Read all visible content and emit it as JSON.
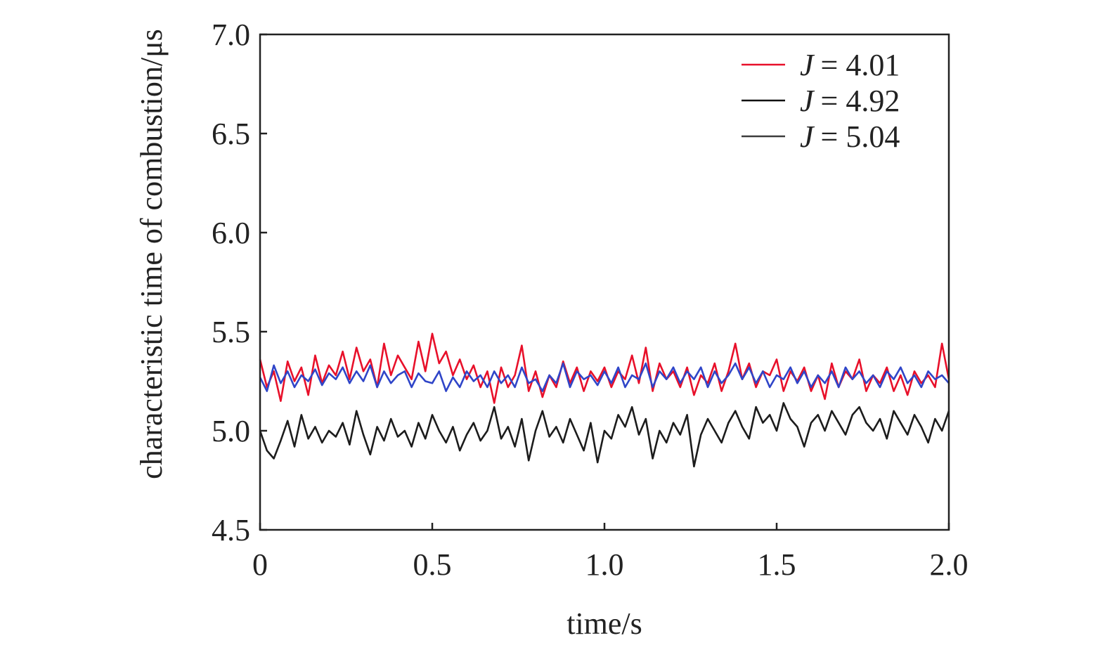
{
  "chart_data": {
    "type": "line",
    "title": "",
    "xlabel": "time/s",
    "ylabel": "characteristic time of combustion/μs",
    "xlim": [
      0,
      2.0
    ],
    "ylim": [
      4.5,
      7.0
    ],
    "xticks": [
      {
        "value": 0,
        "label": "0"
      },
      {
        "value": 0.5,
        "label": "0.5"
      },
      {
        "value": 1.0,
        "label": "1.0"
      },
      {
        "value": 1.5,
        "label": "1.5"
      },
      {
        "value": 2.0,
        "label": "2.0"
      }
    ],
    "yticks": [
      {
        "value": 4.5,
        "label": "4.5"
      },
      {
        "value": 5.0,
        "label": "5.0"
      },
      {
        "value": 5.5,
        "label": "5.5"
      },
      {
        "value": 6.0,
        "label": "6.0"
      },
      {
        "value": 6.5,
        "label": "6.5"
      },
      {
        "value": 7.0,
        "label": "7.0"
      }
    ],
    "grid": false,
    "legend_position": "top-right",
    "series": [
      {
        "name": "J = 4.01",
        "legend_symbol": "J",
        "legend_value": "= 4.01",
        "color": "#e8102a",
        "legend_color": "#e8102a",
        "x": [
          0.0,
          0.02,
          0.04,
          0.06,
          0.08,
          0.1,
          0.12,
          0.14,
          0.16,
          0.18,
          0.2,
          0.22,
          0.24,
          0.26,
          0.28,
          0.3,
          0.32,
          0.34,
          0.36,
          0.38,
          0.4,
          0.42,
          0.44,
          0.46,
          0.48,
          0.5,
          0.52,
          0.54,
          0.56,
          0.58,
          0.6,
          0.62,
          0.64,
          0.66,
          0.68,
          0.7,
          0.72,
          0.74,
          0.76,
          0.78,
          0.8,
          0.82,
          0.84,
          0.86,
          0.88,
          0.9,
          0.92,
          0.94,
          0.96,
          0.98,
          1.0,
          1.02,
          1.04,
          1.06,
          1.08,
          1.1,
          1.12,
          1.14,
          1.16,
          1.18,
          1.2,
          1.22,
          1.24,
          1.26,
          1.28,
          1.3,
          1.32,
          1.34,
          1.36,
          1.38,
          1.4,
          1.42,
          1.44,
          1.46,
          1.48,
          1.5,
          1.52,
          1.54,
          1.56,
          1.58,
          1.6,
          1.62,
          1.64,
          1.66,
          1.68,
          1.7,
          1.72,
          1.74,
          1.76,
          1.78,
          1.8,
          1.82,
          1.84,
          1.86,
          1.88,
          1.9,
          1.92,
          1.94,
          1.96,
          1.98,
          2.0
        ],
        "y": [
          5.36,
          5.22,
          5.3,
          5.15,
          5.35,
          5.25,
          5.32,
          5.18,
          5.38,
          5.24,
          5.33,
          5.28,
          5.4,
          5.26,
          5.42,
          5.3,
          5.36,
          5.22,
          5.44,
          5.28,
          5.38,
          5.32,
          5.26,
          5.45,
          5.3,
          5.49,
          5.34,
          5.4,
          5.28,
          5.36,
          5.26,
          5.33,
          5.22,
          5.3,
          5.14,
          5.32,
          5.22,
          5.28,
          5.43,
          5.2,
          5.3,
          5.17,
          5.28,
          5.22,
          5.35,
          5.24,
          5.32,
          5.2,
          5.3,
          5.25,
          5.32,
          5.22,
          5.3,
          5.26,
          5.38,
          5.24,
          5.42,
          5.2,
          5.34,
          5.26,
          5.3,
          5.22,
          5.32,
          5.18,
          5.28,
          5.24,
          5.34,
          5.2,
          5.3,
          5.44,
          5.26,
          5.34,
          5.22,
          5.3,
          5.28,
          5.36,
          5.2,
          5.3,
          5.25,
          5.32,
          5.2,
          5.28,
          5.16,
          5.34,
          5.22,
          5.3,
          5.26,
          5.36,
          5.2,
          5.28,
          5.24,
          5.32,
          5.2,
          5.28,
          5.18,
          5.3,
          5.24,
          5.28,
          5.22,
          5.44,
          5.26
        ]
      },
      {
        "name": "J = 4.92",
        "legend_symbol": "J",
        "legend_value": "= 4.92",
        "color": "#1c1c1c",
        "legend_color": "#111111",
        "x": [
          0.0,
          0.02,
          0.04,
          0.06,
          0.08,
          0.1,
          0.12,
          0.14,
          0.16,
          0.18,
          0.2,
          0.22,
          0.24,
          0.26,
          0.28,
          0.3,
          0.32,
          0.34,
          0.36,
          0.38,
          0.4,
          0.42,
          0.44,
          0.46,
          0.48,
          0.5,
          0.52,
          0.54,
          0.56,
          0.58,
          0.6,
          0.62,
          0.64,
          0.66,
          0.68,
          0.7,
          0.72,
          0.74,
          0.76,
          0.78,
          0.8,
          0.82,
          0.84,
          0.86,
          0.88,
          0.9,
          0.92,
          0.94,
          0.96,
          0.98,
          1.0,
          1.02,
          1.04,
          1.06,
          1.08,
          1.1,
          1.12,
          1.14,
          1.16,
          1.18,
          1.2,
          1.22,
          1.24,
          1.26,
          1.28,
          1.3,
          1.32,
          1.34,
          1.36,
          1.38,
          1.4,
          1.42,
          1.44,
          1.46,
          1.48,
          1.5,
          1.52,
          1.54,
          1.56,
          1.58,
          1.6,
          1.62,
          1.64,
          1.66,
          1.68,
          1.7,
          1.72,
          1.74,
          1.76,
          1.78,
          1.8,
          1.82,
          1.84,
          1.86,
          1.88,
          1.9,
          1.92,
          1.94,
          1.96,
          1.98,
          2.0
        ],
        "y": [
          5.0,
          4.9,
          4.86,
          4.95,
          5.05,
          4.92,
          5.08,
          4.96,
          5.02,
          4.94,
          5.0,
          4.97,
          5.04,
          4.93,
          5.1,
          4.98,
          4.88,
          5.02,
          4.95,
          5.06,
          4.97,
          5.0,
          4.92,
          5.04,
          4.96,
          5.08,
          5.0,
          4.94,
          5.02,
          4.9,
          4.98,
          5.04,
          4.95,
          5.0,
          5.12,
          4.96,
          5.02,
          4.92,
          5.06,
          4.85,
          5.0,
          5.1,
          4.97,
          5.02,
          4.94,
          5.06,
          4.98,
          4.9,
          5.04,
          4.84,
          5.0,
          4.96,
          5.08,
          5.02,
          5.12,
          4.98,
          5.06,
          4.86,
          5.0,
          4.94,
          5.04,
          4.98,
          5.08,
          4.82,
          4.98,
          5.06,
          5.0,
          4.94,
          5.04,
          5.1,
          5.02,
          4.96,
          5.12,
          5.04,
          5.08,
          5.0,
          5.14,
          5.06,
          5.02,
          4.92,
          5.04,
          5.08,
          5.0,
          5.1,
          5.04,
          4.98,
          5.08,
          5.12,
          5.04,
          5.0,
          5.06,
          4.96,
          5.1,
          5.04,
          4.98,
          5.08,
          5.02,
          4.94,
          5.06,
          5.0,
          5.1
        ]
      },
      {
        "name": "J = 5.04",
        "legend_symbol": "J",
        "legend_value": "= 5.04",
        "color": "#2f45c8",
        "legend_color": "#3c3c3c",
        "x": [
          0.0,
          0.02,
          0.04,
          0.06,
          0.08,
          0.1,
          0.12,
          0.14,
          0.16,
          0.18,
          0.2,
          0.22,
          0.24,
          0.26,
          0.28,
          0.3,
          0.32,
          0.34,
          0.36,
          0.38,
          0.4,
          0.42,
          0.44,
          0.46,
          0.48,
          0.5,
          0.52,
          0.54,
          0.56,
          0.58,
          0.6,
          0.62,
          0.64,
          0.66,
          0.68,
          0.7,
          0.72,
          0.74,
          0.76,
          0.78,
          0.8,
          0.82,
          0.84,
          0.86,
          0.88,
          0.9,
          0.92,
          0.94,
          0.96,
          0.98,
          1.0,
          1.02,
          1.04,
          1.06,
          1.08,
          1.1,
          1.12,
          1.14,
          1.16,
          1.18,
          1.2,
          1.22,
          1.24,
          1.26,
          1.28,
          1.3,
          1.32,
          1.34,
          1.36,
          1.38,
          1.4,
          1.42,
          1.44,
          1.46,
          1.48,
          1.5,
          1.52,
          1.54,
          1.56,
          1.58,
          1.6,
          1.62,
          1.64,
          1.66,
          1.68,
          1.7,
          1.72,
          1.74,
          1.76,
          1.78,
          1.8,
          1.82,
          1.84,
          1.86,
          1.88,
          1.9,
          1.92,
          1.94,
          1.96,
          1.98,
          2.0
        ],
        "y": [
          5.27,
          5.2,
          5.33,
          5.24,
          5.3,
          5.22,
          5.28,
          5.25,
          5.31,
          5.23,
          5.29,
          5.26,
          5.32,
          5.24,
          5.3,
          5.25,
          5.33,
          5.22,
          5.3,
          5.24,
          5.28,
          5.3,
          5.22,
          5.29,
          5.25,
          5.24,
          5.3,
          5.2,
          5.27,
          5.22,
          5.3,
          5.25,
          5.28,
          5.22,
          5.3,
          5.24,
          5.28,
          5.22,
          5.32,
          5.24,
          5.26,
          5.2,
          5.28,
          5.24,
          5.34,
          5.22,
          5.3,
          5.26,
          5.28,
          5.23,
          5.3,
          5.24,
          5.32,
          5.22,
          5.28,
          5.26,
          5.34,
          5.22,
          5.3,
          5.26,
          5.32,
          5.24,
          5.3,
          5.26,
          5.32,
          5.22,
          5.3,
          5.24,
          5.28,
          5.34,
          5.26,
          5.32,
          5.24,
          5.3,
          5.22,
          5.28,
          5.26,
          5.32,
          5.24,
          5.3,
          5.22,
          5.28,
          5.24,
          5.3,
          5.22,
          5.32,
          5.26,
          5.3,
          5.24,
          5.28,
          5.22,
          5.3,
          5.26,
          5.32,
          5.24,
          5.28,
          5.22,
          5.3,
          5.26,
          5.28,
          5.24
        ]
      }
    ]
  }
}
